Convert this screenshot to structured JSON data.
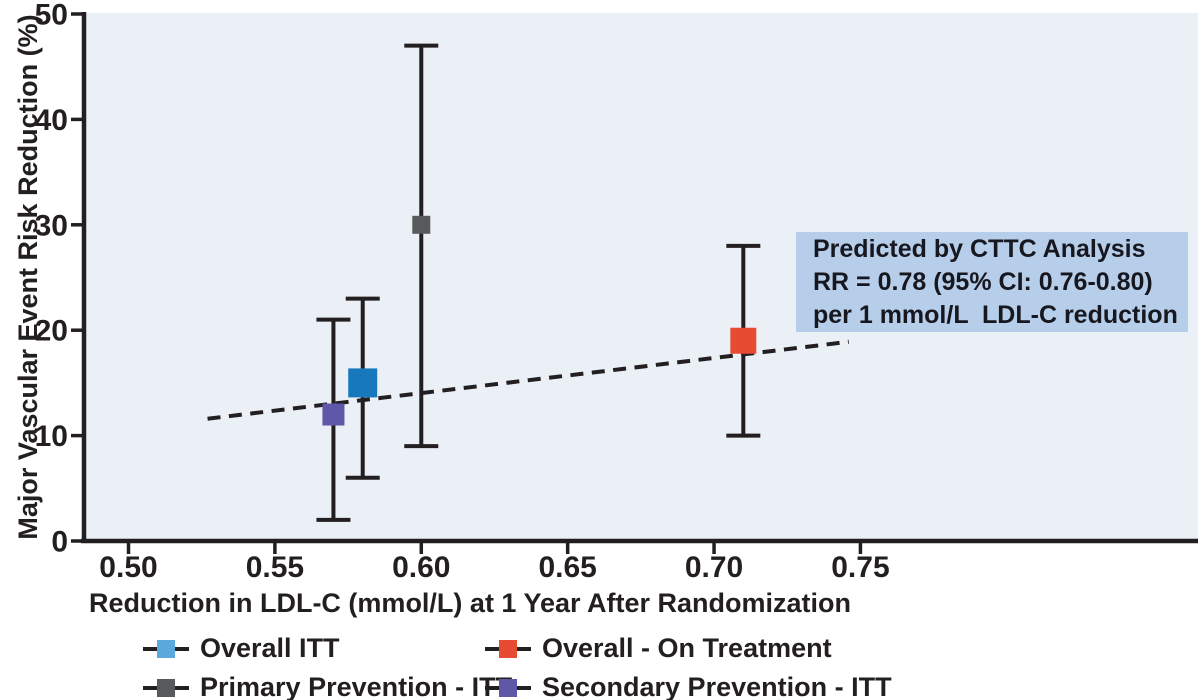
{
  "figure": {
    "y_axis_title": "Major Vascular Event Risk Reduction (%)",
    "x_axis_title": "Reduction in LDL-C (mmol/L) at 1 Year After Randomization"
  },
  "annotation": {
    "line1": "Predicted by CTTC Analysis",
    "line2": "RR = 0.78 (95% CI: 0.76-0.80)",
    "line3": "per 1 mmol/L  LDL-C reduction",
    "bg_color": "#b6cee9"
  },
  "legend": {
    "items": [
      {
        "label": "Overall ITT",
        "color": "#5ba8dc"
      },
      {
        "label": "Overall - On Treatment",
        "color": "#e74c32"
      },
      {
        "label": "Primary Prevention - ITT",
        "color": "#58595b"
      },
      {
        "label": "Secondary Prevention - ITT",
        "color": "#5f57a8"
      }
    ]
  },
  "chart_data": {
    "type": "scatter",
    "title": "",
    "xlabel": "Reduction in LDL-C (mmol/L) at 1 Year After Randomization",
    "ylabel": "Major Vascular Event Risk Reduction (%)",
    "x_ticks": [
      "0.50",
      "0.55",
      "0.60",
      "0.65",
      "0.70",
      "0.75"
    ],
    "y_ticks": [
      "0",
      "10",
      "20",
      "30",
      "40",
      "50"
    ],
    "xlim": [
      0.4848,
      0.8653
    ],
    "ylim": [
      0,
      50
    ],
    "grid": false,
    "plot_bg": "#eaf0f6",
    "axis_color": "#231f20",
    "legend_position": "bottom",
    "series": [
      {
        "name": "Overall ITT",
        "x": 0.58,
        "y": 15,
        "ci_low": 6,
        "ci_high": 23,
        "color": "#1878be",
        "marker_size": 29
      },
      {
        "name": "Overall - On Treatment",
        "x": 0.71,
        "y": 19,
        "ci_low": 10,
        "ci_high": 28,
        "color": "#e74c32",
        "marker_size": 26
      },
      {
        "name": "Primary Prevention - ITT",
        "x": 0.6,
        "y": 30,
        "ci_low": 9,
        "ci_high": 47,
        "color": "#58595b",
        "marker_size": 18
      },
      {
        "name": "Secondary Prevention - ITT",
        "x": 0.57,
        "y": 12,
        "ci_low": 2,
        "ci_high": 21,
        "color": "#5f57a8",
        "marker_size": 22
      }
    ],
    "trend_line": {
      "style": "dashed",
      "x1": 0.527,
      "y1": 11.6,
      "x2": 0.746,
      "y2": 18.9,
      "label": "Predicted by CTTC Analysis: RR = 0.78 (95% CI: 0.76-0.80) per 1 mmol/L LDL-C reduction"
    }
  }
}
